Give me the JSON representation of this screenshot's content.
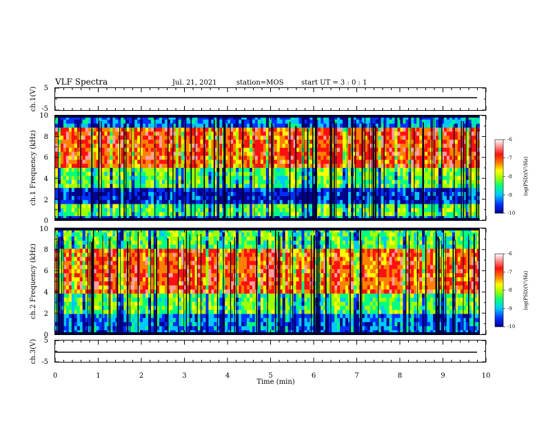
{
  "header": {
    "title": "VLF Spectra",
    "date": "Jul. 21, 2021",
    "station": "station=MOS",
    "start": "start UT = 3 : 0 : 1"
  },
  "chart_data": [
    {
      "type": "line",
      "id": "ch1-waveform",
      "ylabel": "ch.1(V)",
      "ylim": [
        -5,
        5
      ],
      "ytick_labels": [
        "5",
        "-5"
      ],
      "x": [
        0,
        9.85
      ],
      "values": [
        0,
        0
      ]
    },
    {
      "type": "heatmap",
      "id": "ch1-spectrogram",
      "ylabel": "ch.1 Frequency (kHz)",
      "ylim": [
        0,
        10
      ],
      "ytick_labels": [
        "0",
        "2",
        "4",
        "6",
        "8",
        "10"
      ],
      "xlim": [
        0,
        10
      ],
      "data_extent_min": 9.85,
      "colorbar": {
        "label": "log(PSD)(V²/Hz)",
        "range": [
          -10,
          -6
        ],
        "tick_labels": [
          "-6",
          "-7",
          "-8",
          "-9",
          "-10"
        ]
      },
      "bands": [
        {
          "from_khz": 0,
          "to_khz": 0.5,
          "level": "low"
        },
        {
          "from_khz": 0.5,
          "to_khz": 1.5,
          "level": "medium"
        },
        {
          "from_khz": 1.5,
          "to_khz": 3,
          "level": "very low"
        },
        {
          "from_khz": 3,
          "to_khz": 5,
          "level": "medium"
        },
        {
          "from_khz": 5,
          "to_khz": 9,
          "level": "high"
        },
        {
          "from_khz": 9,
          "to_khz": 10,
          "level": "low"
        }
      ]
    },
    {
      "type": "heatmap",
      "id": "ch2-spectrogram",
      "ylabel": "ch.2 Frequency (kHz)",
      "ylim": [
        0,
        10
      ],
      "ytick_labels": [
        "0",
        "2",
        "4",
        "6",
        "8",
        "10"
      ],
      "xlim": [
        0,
        10
      ],
      "data_extent_min": 9.85,
      "colorbar": {
        "label": "log(PSD)(V²/Hz)",
        "range": [
          -10,
          -6
        ],
        "tick_labels": [
          "-6",
          "-7",
          "-8",
          "-9",
          "-10"
        ]
      },
      "bands": [
        {
          "from_khz": 0,
          "to_khz": 2,
          "level": "low"
        },
        {
          "from_khz": 2,
          "to_khz": 4,
          "level": "medium"
        },
        {
          "from_khz": 4,
          "to_khz": 8,
          "level": "high"
        },
        {
          "from_khz": 8,
          "to_khz": 10,
          "level": "medium"
        }
      ]
    },
    {
      "type": "line",
      "id": "ch3-waveform",
      "ylabel": "ch.3(V)",
      "ylim": [
        -5,
        5
      ],
      "ytick_labels": [
        "5",
        "-5"
      ],
      "x": [
        0,
        9.85
      ],
      "values": [
        0,
        0
      ]
    }
  ],
  "xaxis": {
    "label": "Time (min)",
    "range": [
      0,
      10
    ],
    "tick_labels": [
      "0",
      "1",
      "2",
      "3",
      "4",
      "5",
      "6",
      "7",
      "8",
      "9",
      "10"
    ]
  },
  "colors": {
    "colormap": [
      "#000090",
      "#0030ff",
      "#00c8ff",
      "#00ff80",
      "#a0ff00",
      "#ffff00",
      "#ff8000",
      "#ff1010",
      "#ffa0a0",
      "#ffffff"
    ],
    "frame": "#000000"
  }
}
